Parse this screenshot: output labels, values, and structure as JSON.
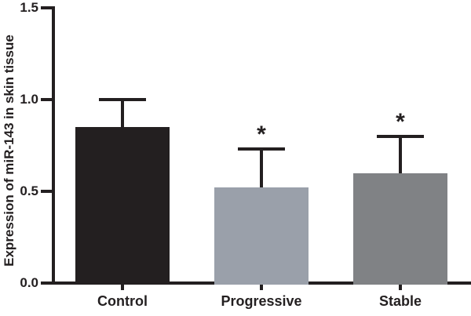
{
  "figure": {
    "background": "#ffffff"
  },
  "chart_data": {
    "type": "bar",
    "title": "",
    "xlabel": "",
    "ylabel": "Expression of miR-143 in skin tissue",
    "categories": [
      "Control",
      "Progressive",
      "Stable"
    ],
    "series": [
      {
        "name": "Expression of miR-143 in skin tissue",
        "values": [
          0.85,
          0.52,
          0.6
        ],
        "errors": [
          0.15,
          0.21,
          0.2
        ],
        "error_style": "upper-only",
        "significance": [
          "",
          "*",
          "*"
        ],
        "bar_colors": [
          "#231f20",
          "#9aa0aa",
          "#808285"
        ]
      }
    ],
    "ylim": [
      0,
      1.5
    ],
    "yticks": [
      "0.0",
      "0.5",
      "1.0",
      "1.5"
    ],
    "grid": false,
    "legend": false,
    "axis_color": "#231f20",
    "error_bar_color": "#231f20"
  }
}
